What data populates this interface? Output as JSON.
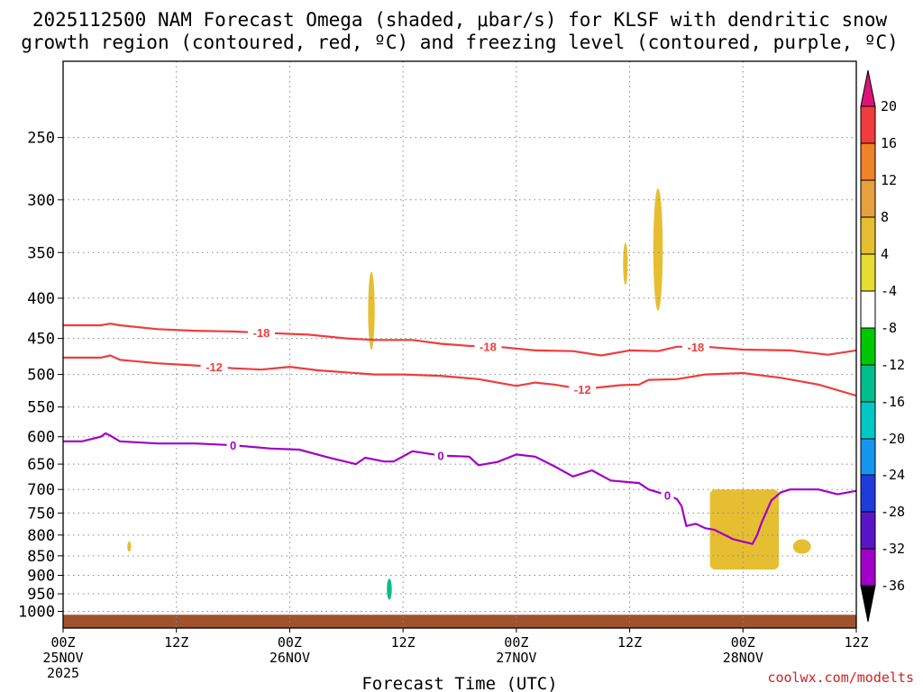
{
  "title_line1": "2025112500 NAM Forecast Omega (shaded, μbar/s) for KLSF with dendritic snow",
  "title_line2": "growth region (contoured, red, ºC) and freezing level (contoured, purple, ºC)",
  "xlabel": "Forecast Time (UTC)",
  "credit": "coolwx.com/modelts",
  "credit_color": "#d42020",
  "colors": {
    "dgz": "#f03c3c",
    "freezing": "#a000c8",
    "ground": "#a0522d",
    "grid": "#888888"
  },
  "chart_data": {
    "type": "heatmap",
    "y_axis": {
      "label": "",
      "scale": "log",
      "reversed": true,
      "range": [
        1050,
        200
      ],
      "ticks": [
        250,
        300,
        350,
        400,
        450,
        500,
        550,
        600,
        650,
        700,
        750,
        800,
        850,
        900,
        950,
        1000
      ]
    },
    "x_axis": {
      "range_hours": [
        0,
        84
      ],
      "ticks": [
        {
          "hour": 0,
          "lines": [
            "00Z",
            "25NOV",
            "2025"
          ]
        },
        {
          "hour": 12,
          "lines": [
            "12Z"
          ]
        },
        {
          "hour": 24,
          "lines": [
            "00Z",
            "26NOV"
          ]
        },
        {
          "hour": 36,
          "lines": [
            "12Z"
          ]
        },
        {
          "hour": 48,
          "lines": [
            "00Z",
            "27NOV"
          ]
        },
        {
          "hour": 60,
          "lines": [
            "12Z"
          ]
        },
        {
          "hour": 72,
          "lines": [
            "00Z",
            "28NOV"
          ]
        },
        {
          "hour": 84,
          "lines": [
            "12Z"
          ]
        }
      ]
    },
    "colorbar": {
      "levels": [
        20,
        16,
        12,
        8,
        4,
        -4,
        -8,
        -12,
        -16,
        -20,
        -24,
        -28,
        -32,
        -36
      ],
      "fill_colors": [
        "#f03c3c",
        "#f08228",
        "#e6a03c",
        "#e6be32",
        "#e6dc32",
        "#ffffff",
        "#00c800",
        "#00be8c",
        "#00c8c8",
        "#1496f0",
        "#1e3cdc",
        "#5a14c8",
        "#a000c8",
        "#a0a0a0"
      ],
      "top_color": "#dc1478",
      "bottom_color": "#000000"
    },
    "series": [
      {
        "name": "-18",
        "color": "#f03c3c",
        "label_at_hours": [
          21,
          45,
          67
        ],
        "points": [
          [
            0,
            433
          ],
          [
            4,
            433
          ],
          [
            5,
            431
          ],
          [
            6,
            433
          ],
          [
            10,
            438
          ],
          [
            14,
            440
          ],
          [
            18,
            441
          ],
          [
            22,
            443
          ],
          [
            26,
            445
          ],
          [
            30,
            450
          ],
          [
            33,
            452
          ],
          [
            37,
            452
          ],
          [
            40,
            457
          ],
          [
            43,
            460
          ],
          [
            46,
            461
          ],
          [
            50,
            466
          ],
          [
            54,
            467
          ],
          [
            57,
            473
          ],
          [
            60,
            466
          ],
          [
            63,
            467
          ],
          [
            65,
            461
          ],
          [
            68,
            461
          ],
          [
            72,
            465
          ],
          [
            77,
            466
          ],
          [
            81,
            472
          ],
          [
            84,
            466
          ]
        ]
      },
      {
        "name": "-12",
        "color": "#f03c3c",
        "label_at_hours": [
          16,
          55
        ],
        "points": [
          [
            0,
            476
          ],
          [
            4,
            476
          ],
          [
            5,
            473
          ],
          [
            6,
            479
          ],
          [
            10,
            484
          ],
          [
            14,
            487
          ],
          [
            18,
            491
          ],
          [
            21,
            493
          ],
          [
            24,
            489
          ],
          [
            27,
            494
          ],
          [
            30,
            497
          ],
          [
            33,
            500
          ],
          [
            36,
            500
          ],
          [
            40,
            502
          ],
          [
            44,
            507
          ],
          [
            48,
            517
          ],
          [
            50,
            512
          ],
          [
            52,
            515
          ],
          [
            55,
            522
          ],
          [
            59,
            516
          ],
          [
            61,
            515
          ],
          [
            62,
            508
          ],
          [
            65,
            507
          ],
          [
            68,
            500
          ],
          [
            72,
            498
          ],
          [
            76,
            505
          ],
          [
            80,
            515
          ],
          [
            84,
            532
          ]
        ]
      },
      {
        "name": "0",
        "color": "#a000c8",
        "label_at_hours": [
          18,
          40,
          64
        ],
        "points": [
          [
            0,
            608
          ],
          [
            2,
            608
          ],
          [
            4,
            600
          ],
          [
            4.5,
            594
          ],
          [
            5,
            598
          ],
          [
            6,
            608
          ],
          [
            10,
            612
          ],
          [
            14,
            612
          ],
          [
            18,
            615
          ],
          [
            22,
            621
          ],
          [
            25,
            623
          ],
          [
            28,
            637
          ],
          [
            31,
            650
          ],
          [
            32,
            638
          ],
          [
            34,
            645
          ],
          [
            35,
            645
          ],
          [
            37,
            626
          ],
          [
            40,
            634
          ],
          [
            43,
            636
          ],
          [
            44,
            652
          ],
          [
            46,
            646
          ],
          [
            48,
            632
          ],
          [
            50,
            636
          ],
          [
            52,
            654
          ],
          [
            54,
            674
          ],
          [
            56,
            662
          ],
          [
            58,
            682
          ],
          [
            61,
            687
          ],
          [
            62,
            700
          ],
          [
            64,
            712
          ],
          [
            65,
            720
          ],
          [
            65.5,
            735
          ],
          [
            66,
            779
          ],
          [
            67,
            774
          ],
          [
            68,
            784
          ],
          [
            69,
            788
          ],
          [
            71,
            810
          ],
          [
            73,
            821
          ],
          [
            73.5,
            800
          ],
          [
            74,
            770
          ],
          [
            75,
            723
          ],
          [
            76,
            706
          ],
          [
            77,
            700
          ],
          [
            80,
            700
          ],
          [
            82,
            710
          ],
          [
            84,
            703
          ]
        ]
      }
    ],
    "shaded_areas": [
      {
        "value": -6,
        "hours": [
          5.5,
          6.5
        ],
        "p": [
          545,
          830
        ]
      },
      {
        "value": 4,
        "hours": [
          6.8,
          7.2
        ],
        "p": [
          815,
          840
        ]
      },
      {
        "value": -6,
        "hours": [
          17.9,
          19.0
        ],
        "p": [
          815,
          845
        ]
      },
      {
        "value": 4,
        "hours": [
          32.3,
          33.0
        ],
        "p": [
          370,
          465
        ]
      },
      {
        "value": -6,
        "hours": [
          32.2,
          32.6
        ],
        "p": [
          825,
          850
        ]
      },
      {
        "value": -8,
        "hours": [
          33.9,
          35.2
        ],
        "p": [
          870,
          985
        ]
      },
      {
        "value": 4,
        "hours": [
          59.3,
          59.8
        ],
        "p": [
          340,
          385
        ]
      },
      {
        "value": 4,
        "hours": [
          62.5,
          63.5
        ],
        "p": [
          290,
          415
        ]
      },
      {
        "value": 4,
        "hours": [
          68.5,
          75.8
        ],
        "p": [
          700,
          885
        ]
      },
      {
        "value": 4,
        "hours": [
          77.3,
          79.2
        ],
        "p": [
          810,
          845
        ]
      }
    ],
    "ground_pressure": 1010
  }
}
